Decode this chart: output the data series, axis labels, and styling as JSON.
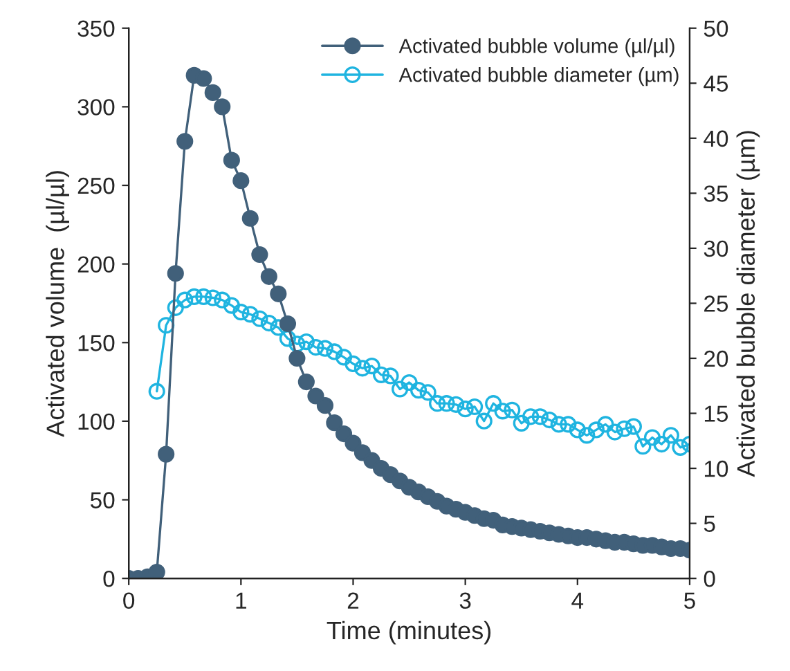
{
  "chart_data": {
    "type": "line",
    "xlabel": "Time (minutes)",
    "ylabel": "Activated volume  (µl/µl)",
    "y2label": "Activated bubble diameter (µm)",
    "x": [
      0,
      0.083,
      0.167,
      0.25,
      0.333,
      0.417,
      0.5,
      0.583,
      0.667,
      0.75,
      0.833,
      0.917,
      1.0,
      1.083,
      1.167,
      1.25,
      1.333,
      1.417,
      1.5,
      1.583,
      1.667,
      1.75,
      1.833,
      1.917,
      2.0,
      2.083,
      2.167,
      2.25,
      2.333,
      2.417,
      2.5,
      2.583,
      2.667,
      2.75,
      2.833,
      2.917,
      3.0,
      3.083,
      3.167,
      3.25,
      3.333,
      3.417,
      3.5,
      3.583,
      3.667,
      3.75,
      3.833,
      3.917,
      4.0,
      4.083,
      4.167,
      4.25,
      4.333,
      4.417,
      4.5,
      4.583,
      4.667,
      4.75,
      4.833,
      4.917,
      5.0
    ],
    "series": [
      {
        "name": "Activated bubble volume (µl/µl)",
        "color": "#41607a",
        "values": [
          0,
          0,
          1,
          4,
          79,
          194,
          278,
          320,
          318,
          309,
          300,
          266,
          253,
          229,
          206,
          192,
          181,
          162,
          140,
          125,
          116,
          110,
          99,
          92,
          86,
          80,
          75,
          70,
          66,
          62,
          58,
          55,
          52,
          49,
          46,
          44,
          42,
          40,
          38,
          37,
          34,
          33,
          32,
          31,
          30,
          29,
          28,
          27,
          26,
          26,
          25,
          24,
          23,
          23,
          22,
          21,
          21,
          20,
          19,
          19,
          18
        ]
      },
      {
        "name": "Activated bubble diameter (µm)",
        "color": "#1fb4e0",
        "axis": "y2",
        "values": [
          null,
          null,
          null,
          17,
          23,
          24.6,
          25.3,
          25.6,
          25.6,
          25.5,
          25.3,
          24.8,
          24.2,
          24.0,
          23.6,
          23.2,
          22.8,
          21.8,
          21.3,
          21.5,
          21.0,
          20.9,
          20.6,
          20.1,
          19.5,
          19.1,
          19.3,
          18.5,
          18.4,
          17.2,
          17.8,
          17.1,
          16.9,
          15.9,
          15.9,
          15.8,
          15.4,
          15.6,
          14.3,
          15.9,
          15.2,
          15.3,
          14.1,
          14.7,
          14.7,
          14.4,
          14.0,
          14.0,
          13.5,
          13.0,
          13.5,
          14.0,
          13.3,
          13.6,
          13.8,
          12.0,
          12.8,
          12.2,
          13.0,
          11.9,
          12.2
        ]
      }
    ],
    "xlim": [
      0,
      5
    ],
    "xticks": [
      0,
      1,
      2,
      3,
      4,
      5
    ],
    "ylim": [
      0,
      350
    ],
    "yticks": [
      0,
      50,
      100,
      150,
      200,
      250,
      300,
      350
    ],
    "y2lim": [
      0,
      50
    ],
    "y2ticks": [
      0,
      5,
      10,
      15,
      20,
      25,
      30,
      35,
      40,
      45,
      50
    ],
    "marker": "circle",
    "line_style": "solid",
    "legend": "top right",
    "grid": false
  }
}
